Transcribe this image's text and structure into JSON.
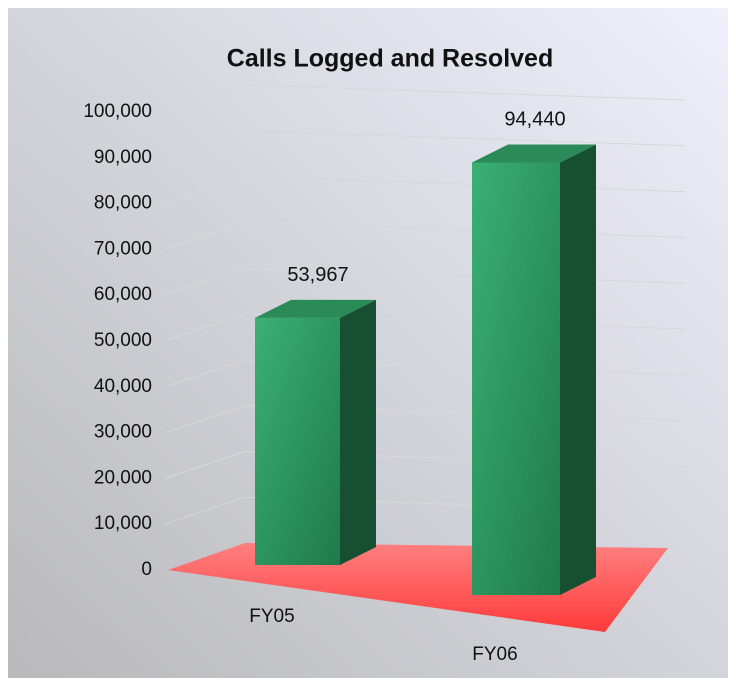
{
  "chart_data": {
    "type": "bar3d",
    "title": "Calls Logged and Resolved",
    "categories": [
      "FY05",
      "FY06"
    ],
    "values": [
      53967,
      94440
    ],
    "value_labels": [
      "53,967",
      "94,440"
    ],
    "color": "#2e9a62",
    "floor_color": "#ff4a4a",
    "ylim": [
      0,
      100000
    ],
    "yticks": [
      0,
      {
        "value": 10000,
        "label": "10,000"
      },
      {
        "value": 20000,
        "label": "20,000"
      },
      {
        "value": 30000,
        "label": "30,000"
      },
      {
        "value": 40000,
        "label": "40,000"
      },
      {
        "value": 50000,
        "label": "50,000"
      },
      {
        "value": 60000,
        "label": "60,000"
      },
      {
        "value": 70000,
        "label": "70,000"
      },
      {
        "value": 80000,
        "label": "80,000"
      },
      {
        "value": 90000,
        "label": "90,000"
      },
      {
        "value": 100000,
        "label": "100,000"
      }
    ],
    "grid": true
  }
}
